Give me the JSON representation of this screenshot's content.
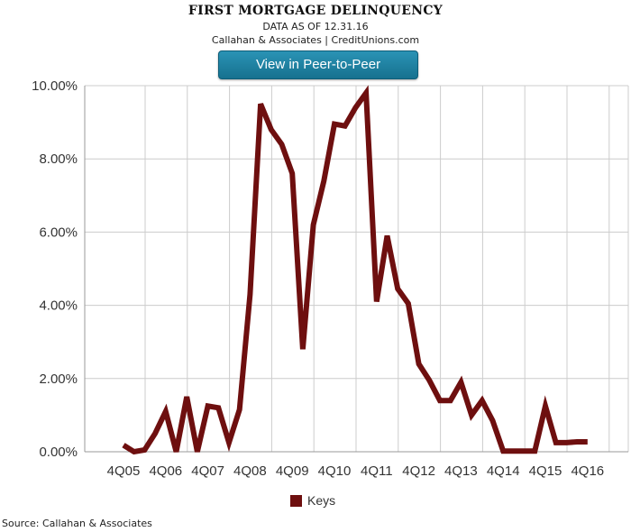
{
  "header": {
    "title": "FIRST MORTGAGE DELINQUENCY",
    "subtitle_date": "DATA AS OF 12.31.16",
    "subtitle_source": "Callahan & Associates | CreditUnions.com",
    "button_label": "View in Peer-to-Peer"
  },
  "footer": {
    "source": "Source: Callahan & Associates"
  },
  "colors": {
    "series": "#6e0f0f",
    "grid": "#cccccc",
    "axis": "#999999",
    "button": "#1c7fa1"
  },
  "chart_data": {
    "type": "line",
    "title": "FIRST MORTGAGE DELINQUENCY",
    "subtitle": "DATA AS OF 12.31.16",
    "ylim": [
      0,
      10
    ],
    "yticks": [
      0,
      2,
      4,
      6,
      8,
      10
    ],
    "ytick_labels": [
      "0.00%",
      "2.00%",
      "4.00%",
      "6.00%",
      "8.00%",
      "10.00%"
    ],
    "xtick_labels": [
      "4Q05",
      "4Q06",
      "4Q07",
      "4Q08",
      "4Q09",
      "4Q10",
      "4Q11",
      "4Q12",
      "4Q13",
      "4Q14",
      "4Q15",
      "4Q16"
    ],
    "grid": true,
    "legend_position": "bottom-center",
    "x": [
      "4Q05",
      "1Q06",
      "2Q06",
      "3Q06",
      "4Q06",
      "1Q07",
      "2Q07",
      "3Q07",
      "4Q07",
      "1Q08",
      "2Q08",
      "3Q08",
      "4Q08",
      "1Q09",
      "2Q09",
      "3Q09",
      "4Q09",
      "1Q10",
      "2Q10",
      "3Q10",
      "4Q10",
      "1Q11",
      "2Q11",
      "3Q11",
      "4Q11",
      "1Q12",
      "2Q12",
      "3Q12",
      "4Q12",
      "1Q13",
      "2Q13",
      "3Q13",
      "4Q13",
      "1Q14",
      "2Q14",
      "3Q14",
      "4Q14",
      "1Q15",
      "2Q15",
      "3Q15",
      "4Q15",
      "1Q16",
      "2Q16",
      "3Q16",
      "4Q16"
    ],
    "series": [
      {
        "name": "Keys",
        "values": [
          0.18,
          0.0,
          0.05,
          0.5,
          1.1,
          0.0,
          1.5,
          0.0,
          1.25,
          1.2,
          0.25,
          1.15,
          4.3,
          9.5,
          8.8,
          8.4,
          7.6,
          2.8,
          6.2,
          7.4,
          8.95,
          8.9,
          9.4,
          9.8,
          4.1,
          5.9,
          4.45,
          4.05,
          2.4,
          1.95,
          1.4,
          1.4,
          1.9,
          1.0,
          1.4,
          0.85,
          0.02,
          0.02,
          0.02,
          0.02,
          1.25,
          0.25,
          0.25,
          0.27,
          0.27
        ]
      }
    ]
  }
}
